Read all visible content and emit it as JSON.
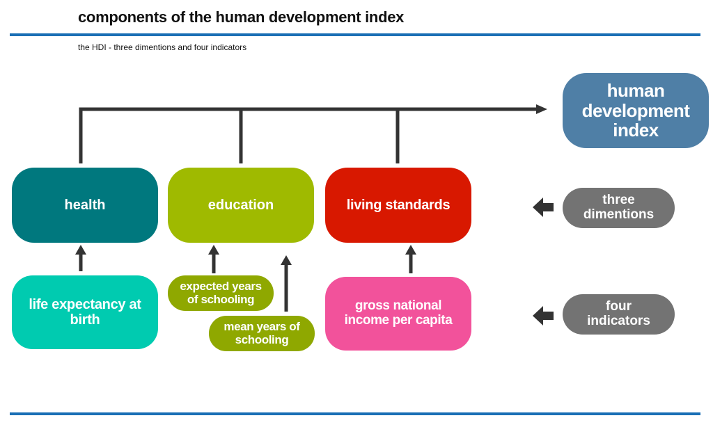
{
  "title": "components of the human development index",
  "subtitle": "the HDI - three dimentions and four indicators",
  "index": {
    "label": "human development index",
    "color": "#4f7fa6"
  },
  "dimensions": [
    {
      "label": "health",
      "color": "#00787e"
    },
    {
      "label": "education",
      "color": "#9fba00"
    },
    {
      "label": "living standards",
      "color": "#d81800"
    }
  ],
  "indicators": [
    {
      "label": "life expectancy at birth",
      "color": "#00cbb0"
    },
    {
      "label": "expected years of schooling",
      "color": "#8fa800"
    },
    {
      "label": "mean years of schooling",
      "color": "#8fa800"
    },
    {
      "label": "gross national income per capita",
      "color": "#f2529b"
    }
  ],
  "legend": {
    "dimensions_label": "three dimentions",
    "indicators_label": "four indicators",
    "color": "#737373"
  },
  "colors": {
    "rule": "#1a6fb5",
    "connector": "#333333"
  }
}
